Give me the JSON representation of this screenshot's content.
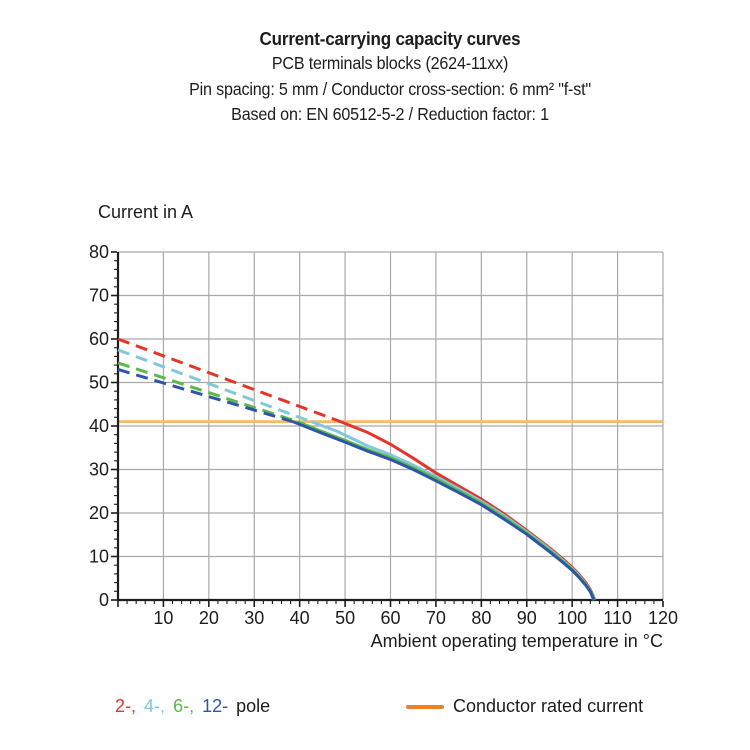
{
  "title": {
    "line1": "Current-carrying capacity curves",
    "line2": "PCB terminals blocks (2624-11xx)",
    "line3": "Pin spacing: 5 mm / Conductor cross-section: 6 mm² \"f-st\"",
    "line4": "Based on: EN 60512-5-2 / Reduction factor: 1"
  },
  "chart_data": {
    "type": "line",
    "title": "Current-carrying capacity curves",
    "ylabel": "Current in A",
    "xlabel": "Ambient operating temperature in °C",
    "xlim": [
      0,
      120
    ],
    "ylim": [
      0,
      80
    ],
    "x_major_tick": 10,
    "x_minor_tick": 2,
    "y_major_tick": 10,
    "y_minor_tick": 2,
    "grid": true,
    "colors": {
      "grid": "#a9a9a9",
      "axis": "#1d1d1b"
    },
    "rated_current": {
      "label": "Conductor rated current",
      "value": 41,
      "color": "#f9b965"
    },
    "series": [
      {
        "name": "2-pole",
        "color": "#e5352b",
        "dashed": [
          [
            0,
            60
          ],
          [
            49,
            41
          ]
        ],
        "solid": [
          [
            49,
            41
          ],
          [
            55,
            38.5
          ],
          [
            60,
            35.8
          ],
          [
            65,
            32.6
          ],
          [
            70,
            29.2
          ],
          [
            75,
            26.2
          ],
          [
            80,
            23.2
          ],
          [
            85,
            19.8
          ],
          [
            90,
            16
          ],
          [
            95,
            12
          ],
          [
            98,
            9.4
          ],
          [
            100,
            7.5
          ],
          [
            101.5,
            5.9
          ],
          [
            103,
            4
          ],
          [
            104,
            2.4
          ],
          [
            104.9,
            0
          ]
        ]
      },
      {
        "name": "4-pole",
        "color": "#82c7da",
        "dashed": [
          [
            0,
            57.5
          ],
          [
            42.5,
            41
          ]
        ],
        "solid": [
          [
            42.5,
            41
          ],
          [
            48,
            38.9
          ],
          [
            55,
            35.4
          ],
          [
            60,
            33.4
          ],
          [
            65,
            31
          ],
          [
            70,
            28.4
          ],
          [
            75,
            25.6
          ],
          [
            80,
            22.7
          ],
          [
            85,
            19.4
          ],
          [
            90,
            15.7
          ],
          [
            95,
            11.7
          ],
          [
            98,
            9.1
          ],
          [
            100,
            7.2
          ],
          [
            101.5,
            5.6
          ],
          [
            103,
            3.7
          ],
          [
            104,
            2.1
          ],
          [
            104.7,
            0
          ]
        ]
      },
      {
        "name": "6-pole",
        "color": "#5bb84a",
        "dashed": [
          [
            0,
            54.5
          ],
          [
            39.5,
            41
          ]
        ],
        "solid": [
          [
            39.5,
            41
          ],
          [
            45,
            38.7
          ],
          [
            50,
            36.7
          ],
          [
            55,
            34.6
          ],
          [
            60,
            32.7
          ],
          [
            65,
            30.4
          ],
          [
            70,
            27.9
          ],
          [
            75,
            25.1
          ],
          [
            80,
            22.3
          ],
          [
            85,
            19
          ],
          [
            90,
            15.4
          ],
          [
            95,
            11.4
          ],
          [
            98,
            8.9
          ],
          [
            100,
            7
          ],
          [
            101.5,
            5.4
          ],
          [
            103,
            3.6
          ],
          [
            104.3,
            1.8
          ],
          [
            105,
            0
          ]
        ]
      },
      {
        "name": "12-pole",
        "color": "#2d57a5",
        "dashed": [
          [
            0,
            53
          ],
          [
            38.5,
            41
          ]
        ],
        "solid": [
          [
            38.5,
            41
          ],
          [
            45,
            38.3
          ],
          [
            50,
            36.3
          ],
          [
            55,
            34.2
          ],
          [
            60,
            32.3
          ],
          [
            65,
            30
          ],
          [
            70,
            27.4
          ],
          [
            75,
            24.7
          ],
          [
            80,
            21.9
          ],
          [
            85,
            18.6
          ],
          [
            90,
            15.1
          ],
          [
            95,
            11.1
          ],
          [
            98,
            8.6
          ],
          [
            100,
            6.8
          ],
          [
            101.5,
            5.2
          ],
          [
            103,
            3.4
          ],
          [
            104,
            1.9
          ],
          [
            104.8,
            0
          ]
        ]
      }
    ],
    "legend_position": "bottom"
  },
  "legend": {
    "poles": [
      {
        "label": "2-,",
        "color": "#e5352b"
      },
      {
        "label": "4-,",
        "color": "#82c7da"
      },
      {
        "label": "6-,",
        "color": "#5bb84a"
      },
      {
        "label": "12-",
        "color": "#2d57a5"
      }
    ],
    "suffix": "pole",
    "rated_label": "Conductor rated current",
    "rated_color": "#ee7f22"
  }
}
